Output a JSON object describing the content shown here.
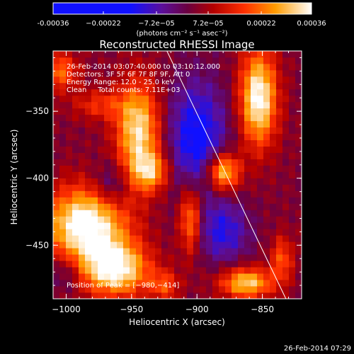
{
  "chart_data": {
    "type": "heatmap",
    "title": "Reconstructed RHESSI Image",
    "xlabel": "Heliocentric X (arcsec)",
    "ylabel": "Heliocentric Y (arcsec)",
    "xlim": [
      -1010,
      -820
    ],
    "ylim": [
      -490,
      -305
    ],
    "x_ticks": [
      -1000,
      -950,
      -900,
      -850
    ],
    "x_tick_labels": [
      "−1000",
      "−950",
      "−900",
      "−850"
    ],
    "y_ticks": [
      -350,
      -400,
      -450
    ],
    "y_tick_labels": [
      "−350",
      "−400",
      "−450"
    ],
    "colorbar": {
      "min": -0.00036,
      "max": 0.00036,
      "ticks": [
        -0.00036,
        -0.00022,
        -7.2e-05,
        7.2e-05,
        0.00022,
        0.00036
      ],
      "tick_labels": [
        "-0.00036",
        "−0.00022",
        "−7.2e−05",
        "7.2e−05",
        "0.00022",
        "0.00036"
      ],
      "unit_label": "(photons cm⁻² s⁻¹ asec⁻²)"
    },
    "annotations": [
      "26-Feb-2014 03:07:40.000 to 03:10:12.000",
      "Detectors: 3F 5F 6F 7F 8F 9F, Att 0",
      "Energy Range: 12.0 - 25.0 keV",
      "Clean     Total counts: 7.11E+03"
    ],
    "peak_label": "Position of Peak = [−980,−414]",
    "peak": [
      -980,
      -414
    ],
    "limb_line": [
      [
        -923,
        -305
      ],
      [
        -832,
        -490
      ]
    ],
    "sources": [
      {
        "x": -985,
        "y": -435,
        "sx": 22,
        "sy": 20,
        "amp": 0.00036
      },
      {
        "x": -962,
        "y": -468,
        "sx": 18,
        "sy": 14,
        "amp": 0.00032
      },
      {
        "x": -945,
        "y": -365,
        "sx": 12,
        "sy": 26,
        "amp": 0.0003
      },
      {
        "x": -935,
        "y": -395,
        "sx": 10,
        "sy": 10,
        "amp": 0.0002
      },
      {
        "x": -905,
        "y": -430,
        "sx": 6,
        "sy": 18,
        "amp": 0.00022
      },
      {
        "x": -880,
        "y": -395,
        "sx": 9,
        "sy": 10,
        "amp": 0.0003
      },
      {
        "x": -853,
        "y": -340,
        "sx": 10,
        "sy": 25,
        "amp": 0.00034
      },
      {
        "x": -862,
        "y": -478,
        "sx": 14,
        "sy": 8,
        "amp": 0.00028
      },
      {
        "x": -1005,
        "y": -320,
        "sx": 10,
        "sy": 10,
        "amp": 0.00018
      },
      {
        "x": -835,
        "y": -460,
        "sx": 6,
        "sy": 12,
        "amp": 0.00016
      },
      {
        "x": -925,
        "y": -480,
        "sx": 8,
        "sy": 8,
        "amp": 0.00014
      },
      {
        "x": -975,
        "y": -345,
        "sx": 14,
        "sy": 8,
        "amp": 0.00012
      }
    ],
    "negatives": [
      {
        "x": -900,
        "y": -370,
        "sx": 16,
        "sy": 30,
        "amp": -0.0002
      },
      {
        "x": -880,
        "y": -440,
        "sx": 14,
        "sy": 16,
        "amp": -0.00015
      },
      {
        "x": -965,
        "y": -405,
        "sx": 10,
        "sy": 12,
        "amp": -0.00012
      },
      {
        "x": -1000,
        "y": -470,
        "sx": 8,
        "sy": 10,
        "amp": -0.0001
      }
    ]
  },
  "footer": {
    "timestamp": "26-Feb-2014 07:29"
  }
}
